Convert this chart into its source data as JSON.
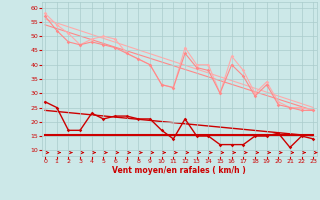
{
  "background_color": "#cce8e8",
  "grid_color": "#aacccc",
  "xlabel": "Vent moyen/en rafales ( km/h )",
  "xlabel_color": "#cc0000",
  "tick_color": "#cc0000",
  "ylim": [
    8,
    62
  ],
  "xlim": [
    -0.3,
    23.3
  ],
  "yticks": [
    10,
    15,
    20,
    25,
    30,
    35,
    40,
    45,
    50,
    55,
    60
  ],
  "xticks": [
    0,
    1,
    2,
    3,
    4,
    5,
    6,
    7,
    8,
    9,
    10,
    11,
    12,
    13,
    14,
    15,
    16,
    17,
    18,
    19,
    20,
    21,
    22,
    23
  ],
  "series": {
    "line1_scatter": {
      "x": [
        0,
        1,
        2,
        3,
        4,
        5,
        6,
        7,
        8,
        9,
        10,
        11,
        12,
        13,
        14,
        15,
        16,
        17,
        18,
        19,
        20,
        21,
        22,
        23
      ],
      "y": [
        58,
        54,
        51,
        47,
        49,
        50,
        49,
        44,
        42,
        40,
        33,
        32,
        46,
        40,
        40,
        30,
        43,
        38,
        30,
        34,
        27,
        25,
        25,
        24
      ],
      "color": "#ffaaaa",
      "linewidth": 0.8,
      "markersize": 1.8
    },
    "line1_trend": {
      "x": [
        0,
        23
      ],
      "y": [
        56,
        25
      ],
      "color": "#ffaaaa",
      "linewidth": 0.8
    },
    "line2_scatter": {
      "x": [
        0,
        1,
        2,
        3,
        4,
        5,
        6,
        7,
        8,
        9,
        10,
        11,
        12,
        13,
        14,
        15,
        16,
        17,
        18,
        19,
        20,
        21,
        22,
        23
      ],
      "y": [
        57,
        52,
        48,
        47,
        48,
        47,
        46,
        44,
        42,
        40,
        33,
        32,
        44,
        39,
        38,
        30,
        40,
        36,
        29,
        33,
        26,
        25,
        24,
        24
      ],
      "color": "#ff8888",
      "linewidth": 0.8,
      "markersize": 1.8
    },
    "line2_trend": {
      "x": [
        0,
        23
      ],
      "y": [
        54,
        24
      ],
      "color": "#ff8888",
      "linewidth": 0.8
    },
    "line3_scatter": {
      "x": [
        0,
        1,
        2,
        3,
        4,
        5,
        6,
        7,
        8,
        9,
        10,
        11,
        12,
        13,
        14,
        15,
        16,
        17,
        18,
        19,
        20,
        21,
        22,
        23
      ],
      "y": [
        27,
        25,
        17,
        17,
        23,
        21,
        22,
        22,
        21,
        21,
        17,
        14,
        21,
        15,
        15,
        12,
        12,
        12,
        15,
        15,
        16,
        11,
        15,
        14
      ],
      "color": "#cc0000",
      "linewidth": 1.0,
      "markersize": 1.8
    },
    "line3_trend": {
      "x": [
        0,
        23
      ],
      "y": [
        24,
        15
      ],
      "color": "#cc0000",
      "linewidth": 1.0
    },
    "line4_flat": {
      "x": [
        0,
        23
      ],
      "y": [
        15.5,
        15.5
      ],
      "color": "#cc0000",
      "linewidth": 1.5
    },
    "arrows": {
      "x": [
        0,
        1,
        2,
        3,
        4,
        5,
        6,
        7,
        8,
        9,
        10,
        11,
        12,
        13,
        14,
        15,
        16,
        17,
        18,
        19,
        20,
        21,
        22,
        23
      ],
      "y_base": 9.2,
      "color": "#cc0000"
    }
  }
}
